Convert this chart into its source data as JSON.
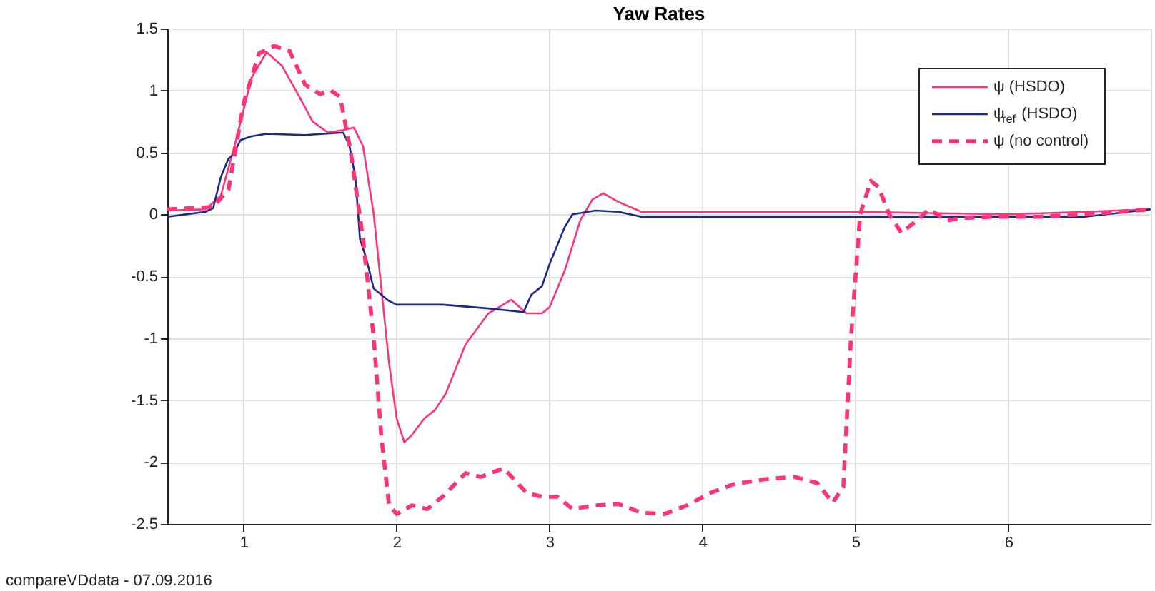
{
  "chart_data": {
    "type": "line",
    "title": "Yaw Rates",
    "xlim": [
      0.5,
      6.93
    ],
    "xticks": [
      1,
      2,
      3,
      4,
      5,
      6
    ],
    "ylim": [
      -2.5,
      1.5
    ],
    "yticks": [
      -2.5,
      -2,
      -1.5,
      -1,
      -0.5,
      0,
      0.5,
      1,
      1.5
    ],
    "grid": true,
    "legend": "top right",
    "annotations": [
      "compareVDdata - 07.09.2016"
    ],
    "series": [
      {
        "name": "ψ (HSDO)",
        "color": "#ff3377",
        "line_style": "solid",
        "x": [
          0.5,
          0.75,
          0.85,
          0.95,
          1.05,
          1.15,
          1.25,
          1.35,
          1.45,
          1.55,
          1.65,
          1.72,
          1.78,
          1.85,
          1.9,
          1.95,
          2.0,
          2.05,
          2.1,
          2.18,
          2.25,
          2.32,
          2.45,
          2.6,
          2.75,
          2.85,
          2.95,
          3.0,
          3.1,
          3.2,
          3.28,
          3.35,
          3.45,
          3.6,
          4.0,
          5.0,
          6.0,
          6.5,
          6.93
        ],
        "values": [
          0.03,
          0.04,
          0.15,
          0.6,
          1.1,
          1.31,
          1.2,
          0.98,
          0.75,
          0.66,
          0.68,
          0.7,
          0.55,
          0.0,
          -0.6,
          -1.2,
          -1.65,
          -1.84,
          -1.78,
          -1.65,
          -1.58,
          -1.45,
          -1.05,
          -0.8,
          -0.69,
          -0.8,
          -0.8,
          -0.75,
          -0.45,
          -0.05,
          0.12,
          0.17,
          0.1,
          0.02,
          0.02,
          0.02,
          0.0,
          0.02,
          0.04
        ]
      },
      {
        "name": "ψ$_{ref}$ (HSDO)",
        "color": "#1a2a8c",
        "line_style": "solid",
        "x": [
          0.5,
          0.75,
          0.8,
          0.85,
          0.9,
          0.93,
          0.98,
          1.05,
          1.15,
          1.4,
          1.65,
          1.69,
          1.73,
          1.76,
          1.8,
          1.85,
          1.95,
          2.0,
          2.3,
          2.6,
          2.83,
          2.88,
          2.95,
          3.0,
          3.05,
          3.1,
          3.15,
          3.3,
          3.45,
          3.6,
          4.0,
          6.5,
          6.93
        ],
        "values": [
          -0.02,
          0.02,
          0.05,
          0.3,
          0.45,
          0.48,
          0.6,
          0.63,
          0.65,
          0.64,
          0.66,
          0.56,
          0.3,
          -0.2,
          -0.35,
          -0.6,
          -0.7,
          -0.73,
          -0.73,
          -0.76,
          -0.79,
          -0.65,
          -0.58,
          -0.4,
          -0.25,
          -0.1,
          0.0,
          0.03,
          0.02,
          -0.02,
          -0.02,
          -0.02,
          0.04
        ]
      },
      {
        "name": "ψ (no control)",
        "color": "#ff3377",
        "line_style": "dashed",
        "x": [
          0.5,
          0.8,
          0.9,
          1.0,
          1.1,
          1.2,
          1.3,
          1.4,
          1.5,
          1.57,
          1.63,
          1.7,
          1.78,
          1.85,
          1.9,
          1.95,
          2.0,
          2.1,
          2.2,
          2.3,
          2.45,
          2.55,
          2.7,
          2.85,
          2.95,
          3.05,
          3.15,
          3.3,
          3.45,
          3.6,
          3.75,
          3.9,
          4.05,
          4.2,
          4.4,
          4.6,
          4.75,
          4.85,
          4.92,
          4.97,
          5.03,
          5.1,
          5.15,
          5.22,
          5.3,
          5.4,
          5.48,
          5.6,
          5.7,
          5.9,
          6.2,
          6.5,
          6.93
        ],
        "values": [
          0.04,
          0.06,
          0.2,
          0.9,
          1.3,
          1.36,
          1.32,
          1.05,
          0.97,
          1.0,
          0.95,
          0.5,
          -0.2,
          -1.0,
          -1.8,
          -2.35,
          -2.42,
          -2.35,
          -2.38,
          -2.28,
          -2.09,
          -2.12,
          -2.05,
          -2.25,
          -2.28,
          -2.28,
          -2.38,
          -2.35,
          -2.34,
          -2.41,
          -2.42,
          -2.35,
          -2.25,
          -2.18,
          -2.14,
          -2.12,
          -2.17,
          -2.33,
          -2.2,
          -1.0,
          0.0,
          0.27,
          0.22,
          0.0,
          -0.15,
          -0.05,
          0.04,
          -0.05,
          -0.03,
          -0.02,
          -0.02,
          0.0,
          0.04
        ]
      }
    ]
  }
}
